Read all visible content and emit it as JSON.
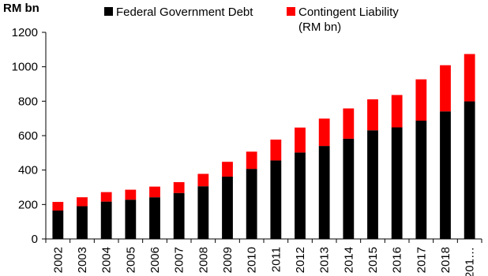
{
  "chart_data": {
    "type": "bar",
    "stacked": true,
    "ylabel": "RM bn",
    "categories": [
      "2002",
      "2003",
      "2004",
      "2005",
      "2006",
      "2007",
      "2008",
      "2009",
      "2010",
      "2011",
      "2012",
      "2013",
      "2014",
      "2015",
      "2016",
      "2017",
      "2018",
      "201…"
    ],
    "series": [
      {
        "name": "Federal Government Debt",
        "color": "#000000",
        "values": [
          165,
          190,
          217,
          228,
          242,
          267,
          306,
          362,
          407,
          456,
          502,
          540,
          582,
          631,
          648,
          687,
          741,
          799
        ]
      },
      {
        "name": "Contingent Liability",
        "name_line2": "(RM bn)",
        "color": "#ff0000",
        "values": [
          50,
          52,
          55,
          58,
          62,
          63,
          72,
          86,
          100,
          121,
          145,
          159,
          176,
          180,
          188,
          240,
          268,
          275
        ]
      }
    ],
    "ylim": [
      0,
      1200
    ],
    "yticks": [
      0,
      200,
      400,
      600,
      800,
      1000,
      1200
    ],
    "grid": false,
    "legend_position": "top"
  }
}
